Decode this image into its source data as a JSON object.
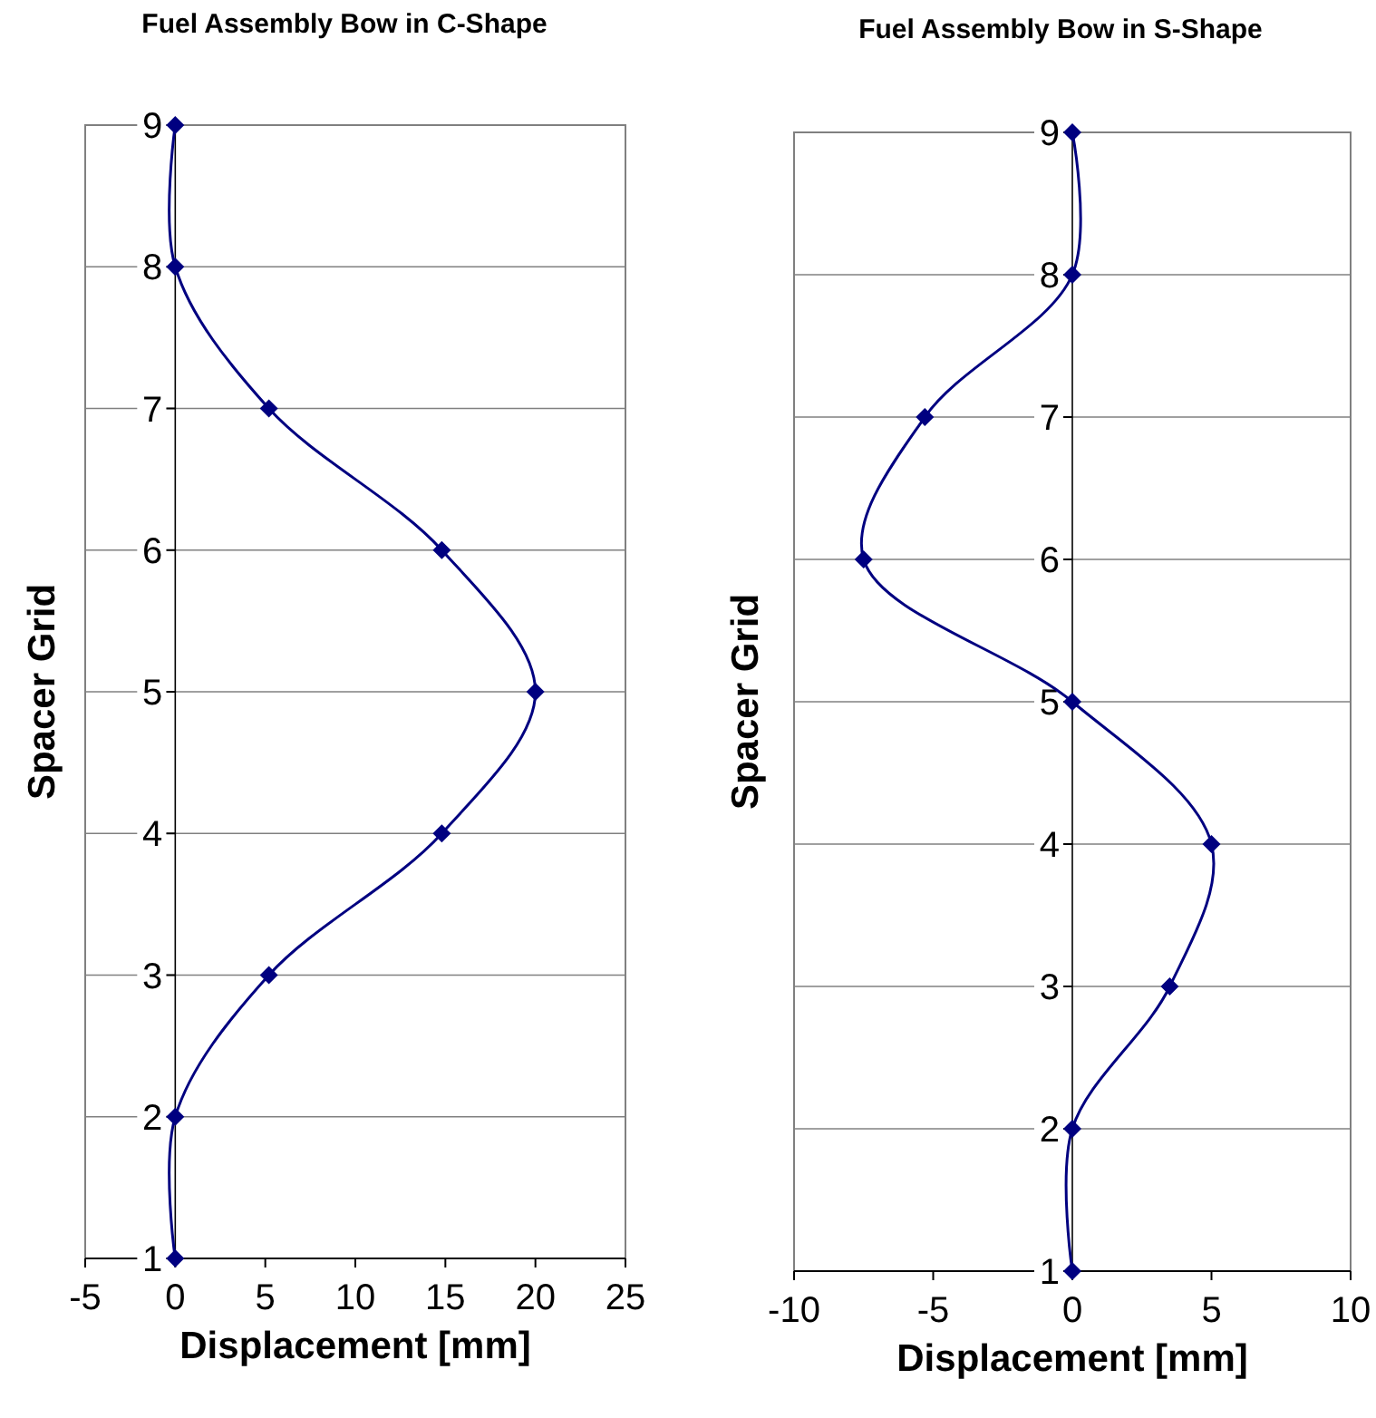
{
  "chart_data": [
    {
      "type": "line",
      "title": "Fuel Assembly Bow in C-Shape",
      "xlabel": "Displacement [mm]",
      "ylabel": "Spacer Grid",
      "xlim": [
        -5,
        25
      ],
      "xticks": [
        -5,
        0,
        5,
        10,
        15,
        20,
        25
      ],
      "ylim": [
        1,
        9
      ],
      "yticks": [
        1,
        2,
        3,
        4,
        5,
        6,
        7,
        8,
        9
      ],
      "grid": "y",
      "marker": "diamond",
      "line_style": "solid",
      "series": [
        {
          "color": "#000080",
          "x": [
            0,
            0,
            5.2,
            14.8,
            20,
            14.8,
            5.2,
            0,
            0
          ],
          "values": [
            1,
            2,
            3,
            4,
            5,
            6,
            7,
            8,
            9
          ]
        }
      ]
    },
    {
      "type": "line",
      "title": "Fuel Assembly Bow in S-Shape",
      "xlabel": "Displacement [mm]",
      "ylabel": "Spacer Grid",
      "xlim": [
        -10,
        10
      ],
      "xticks": [
        -10,
        -5,
        0,
        5,
        10
      ],
      "ylim": [
        1,
        9
      ],
      "yticks": [
        1,
        2,
        3,
        4,
        5,
        6,
        7,
        8,
        9
      ],
      "grid": "y",
      "marker": "diamond",
      "line_style": "solid",
      "series": [
        {
          "color": "#000080",
          "x": [
            0,
            0,
            3.5,
            5,
            0,
            -7.5,
            -5.3,
            0,
            0
          ],
          "values": [
            1,
            2,
            3,
            4,
            5,
            6,
            7,
            8,
            9
          ]
        }
      ]
    }
  ]
}
